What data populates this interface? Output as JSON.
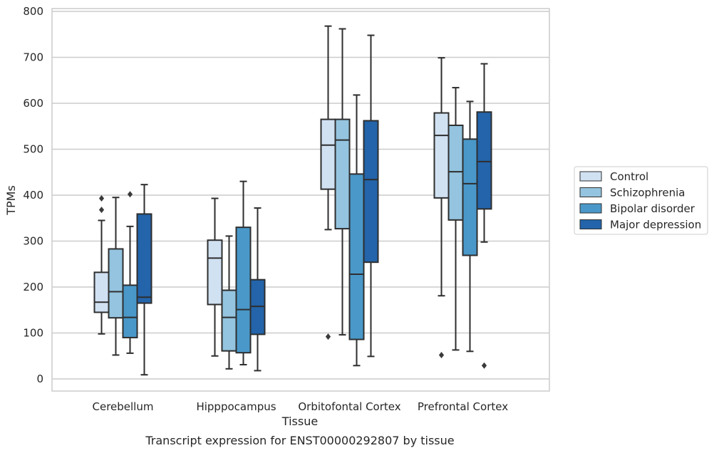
{
  "chart_data": {
    "type": "box",
    "title": "",
    "caption": "Transcript expression for ENST00000292807 by tissue",
    "xlabel": "Tissue",
    "ylabel": "TPMs",
    "ylim": [
      -25,
      805
    ],
    "yticks": [
      0,
      100,
      200,
      300,
      400,
      500,
      600,
      700,
      800
    ],
    "grid": "horizontal",
    "legend_position": "right",
    "categories": [
      "Cerebellum",
      "Hipppocampus",
      "Orbitofontal Cortex",
      "Prefrontal Cortex"
    ],
    "series": [
      {
        "name": "Control",
        "color": "#d0e1f2",
        "boxes": [
          {
            "min": 98,
            "q1": 145,
            "median": 167,
            "q3": 232,
            "max": 345,
            "outliers": [
              368,
              393
            ]
          },
          {
            "min": 50,
            "q1": 162,
            "median": 263,
            "q3": 302,
            "max": 393,
            "outliers": []
          },
          {
            "min": 325,
            "q1": 413,
            "median": 509,
            "q3": 565,
            "max": 768,
            "outliers": [
              92
            ]
          },
          {
            "min": 181,
            "q1": 394,
            "median": 530,
            "q3": 579,
            "max": 699,
            "outliers": [
              52
            ]
          }
        ]
      },
      {
        "name": "Schizophrenia",
        "color": "#94c4df",
        "boxes": [
          {
            "min": 52,
            "q1": 133,
            "median": 190,
            "q3": 283,
            "max": 395,
            "outliers": []
          },
          {
            "min": 22,
            "q1": 61,
            "median": 134,
            "q3": 193,
            "max": 311,
            "outliers": []
          },
          {
            "min": 96,
            "q1": 327,
            "median": 520,
            "q3": 565,
            "max": 762,
            "outliers": []
          },
          {
            "min": 63,
            "q1": 346,
            "median": 451,
            "q3": 552,
            "max": 634,
            "outliers": []
          }
        ]
      },
      {
        "name": "Bipolar disorder",
        "color": "#4a98c9",
        "boxes": [
          {
            "min": 56,
            "q1": 90,
            "median": 134,
            "q3": 204,
            "max": 332,
            "outliers": [
              402
            ]
          },
          {
            "min": 31,
            "q1": 57,
            "median": 151,
            "q3": 330,
            "max": 430,
            "outliers": []
          },
          {
            "min": 29,
            "q1": 86,
            "median": 228,
            "q3": 446,
            "max": 618,
            "outliers": []
          },
          {
            "min": 60,
            "q1": 269,
            "median": 425,
            "q3": 522,
            "max": 604,
            "outliers": []
          }
        ]
      },
      {
        "name": "Major depression",
        "color": "#2364aa",
        "boxes": [
          {
            "min": 9,
            "q1": 165,
            "median": 178,
            "q3": 359,
            "max": 423,
            "outliers": []
          },
          {
            "min": 18,
            "q1": 97,
            "median": 158,
            "q3": 216,
            "max": 372,
            "outliers": []
          },
          {
            "min": 49,
            "q1": 254,
            "median": 434,
            "q3": 562,
            "max": 748,
            "outliers": []
          },
          {
            "min": 298,
            "q1": 370,
            "median": 473,
            "q3": 581,
            "max": 686,
            "outliers": [
              29
            ]
          }
        ]
      }
    ]
  }
}
